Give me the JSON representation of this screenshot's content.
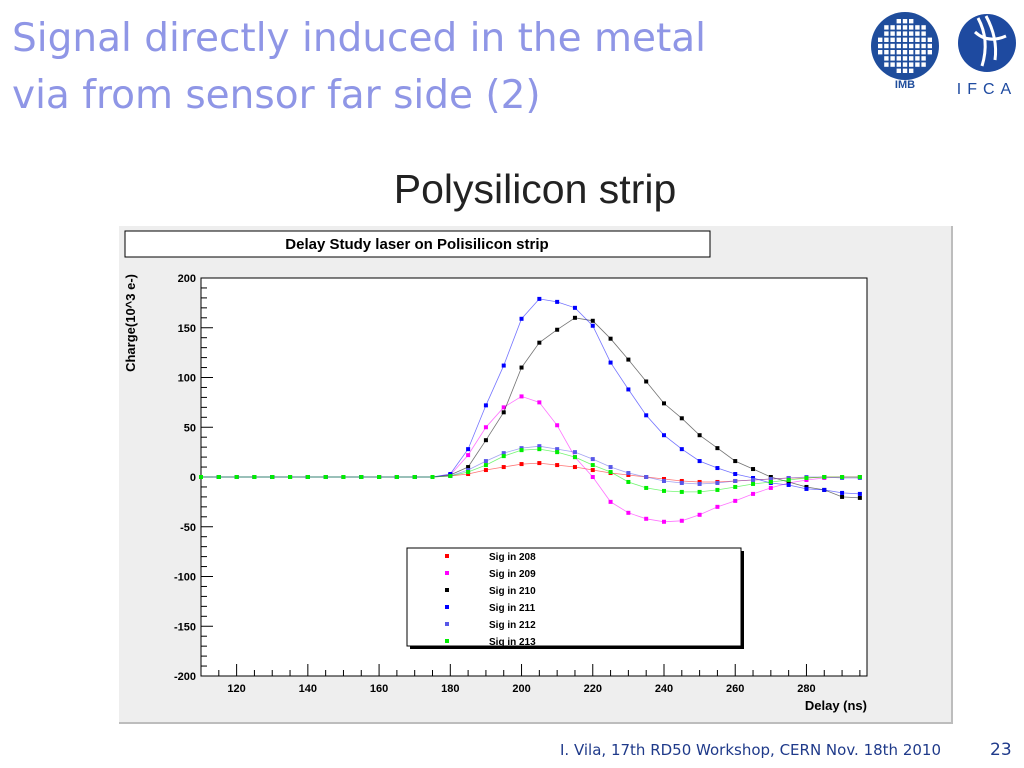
{
  "slide": {
    "title_line1": "Signal directly induced in the metal",
    "title_line2": "via from sensor far side (2)",
    "subtitle": "Polysilicon strip",
    "footer": "I. Vila, 17th RD50 Workshop, CERN  Nov. 18th 2010",
    "page_number": "23"
  },
  "logos": {
    "imb_text": "IMB",
    "ifca_text": "IFCA",
    "imb_color": "#1f4d9c",
    "ifca_color": "#1e4aa0"
  },
  "chart_data": {
    "type": "scatter",
    "title": "Delay Study laser on Polisilicon strip",
    "xlabel": "Delay (ns)",
    "ylabel": "Charge(10^3 e-)",
    "xlim": [
      110,
      297
    ],
    "ylim": [
      -200,
      200
    ],
    "x_ticks": [
      "120",
      "140",
      "160",
      "180",
      "200",
      "220",
      "240",
      "260",
      "280"
    ],
    "y_ticks": [
      "200",
      "150",
      "100",
      "50",
      "0",
      "-50",
      "-100",
      "-150",
      "-200"
    ],
    "legend_position": "bottom-center",
    "x": [
      110,
      115,
      120,
      125,
      130,
      135,
      140,
      145,
      150,
      155,
      160,
      165,
      170,
      175,
      180,
      185,
      190,
      195,
      200,
      205,
      210,
      215,
      220,
      225,
      230,
      235,
      240,
      245,
      250,
      255,
      260,
      265,
      270,
      275,
      280,
      285,
      290,
      295
    ],
    "series": [
      {
        "name": "Sig in 208",
        "color": "#ff0000",
        "values": [
          0,
          0,
          0,
          0,
          0,
          0,
          0,
          0,
          0,
          0,
          0,
          0,
          0,
          0,
          1,
          3,
          7,
          10,
          13,
          14,
          12,
          10,
          7,
          4,
          2,
          0,
          -2,
          -4,
          -5,
          -5,
          -4,
          -3,
          -2,
          -1,
          -1,
          0,
          0,
          0
        ]
      },
      {
        "name": "Sig in 209",
        "color": "#ff00ff",
        "values": [
          0,
          0,
          0,
          0,
          0,
          0,
          0,
          0,
          0,
          0,
          0,
          0,
          0,
          0,
          2,
          22,
          50,
          70,
          81,
          75,
          52,
          20,
          0,
          -25,
          -36,
          -42,
          -45,
          -44,
          -38,
          -30,
          -24,
          -17,
          -11,
          -6,
          -3,
          -1,
          0,
          0
        ]
      },
      {
        "name": "Sig in 210",
        "color": "#000000",
        "values": [
          0,
          0,
          0,
          0,
          0,
          0,
          0,
          0,
          0,
          0,
          0,
          0,
          0,
          0,
          2,
          10,
          37,
          65,
          110,
          135,
          148,
          160,
          157,
          139,
          118,
          96,
          74,
          59,
          42,
          29,
          16,
          8,
          0,
          -5,
          -10,
          -13,
          -20,
          -21
        ]
      },
      {
        "name": "Sig in 211",
        "color": "#0000ff",
        "values": [
          0,
          0,
          0,
          0,
          0,
          0,
          0,
          0,
          0,
          0,
          0,
          0,
          0,
          0,
          3,
          28,
          72,
          112,
          159,
          179,
          176,
          170,
          152,
          115,
          88,
          62,
          42,
          28,
          16,
          9,
          3,
          -1,
          -6,
          -8,
          -12,
          -13,
          -16,
          -17
        ]
      },
      {
        "name": "Sig in 212",
        "color": "#5858e8",
        "values": [
          0,
          0,
          0,
          0,
          0,
          0,
          0,
          0,
          0,
          0,
          0,
          0,
          0,
          0,
          1,
          7,
          16,
          24,
          29,
          31,
          28,
          25,
          18,
          10,
          4,
          0,
          -4,
          -6,
          -7,
          -6,
          -4,
          -3,
          -2,
          -1,
          0,
          0,
          -1,
          -1
        ]
      },
      {
        "name": "Sig in 213",
        "color": "#00ee00",
        "values": [
          0,
          0,
          0,
          0,
          0,
          0,
          0,
          0,
          0,
          0,
          0,
          0,
          0,
          0,
          1,
          5,
          12,
          21,
          27,
          28,
          25,
          20,
          12,
          5,
          -5,
          -11,
          -14,
          -15,
          -15,
          -13,
          -10,
          -7,
          -5,
          -3,
          -1,
          0,
          0,
          0
        ]
      }
    ]
  }
}
